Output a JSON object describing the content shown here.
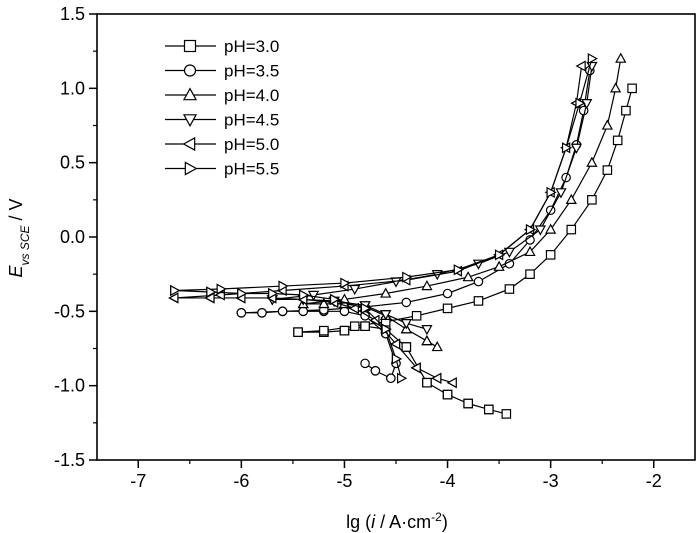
{
  "chart_data": {
    "type": "scatter",
    "xlabel": "lg (i / A·cm⁻²)",
    "xlabel_parts": {
      "pre": "lg (",
      "var": "i",
      "mid": " / A·cm",
      "sup": "-2",
      "post": ")"
    },
    "ylabel_parts": {
      "var": "E",
      "sub": "vs SCE",
      "post": " / V"
    },
    "xlim": [
      -7.4,
      -1.6
    ],
    "ylim": [
      -1.5,
      1.5
    ],
    "xticks": [
      -7,
      -6,
      -5,
      -4,
      -3,
      -2
    ],
    "yticks": [
      -1.5,
      -1.0,
      -0.5,
      0.0,
      0.5,
      1.0,
      1.5
    ],
    "xtick_labels": [
      "-7",
      "-6",
      "-5",
      "-4",
      "-3",
      "-2"
    ],
    "ytick_labels": [
      "-1.5",
      "-1.0",
      "-0.5",
      "0.0",
      "0.5",
      "1.0",
      "1.5"
    ],
    "legend_position": "top-left",
    "series": [
      {
        "name": "pH=3.0",
        "marker": "square",
        "x": [
          -5.45,
          -5.2,
          -5.0,
          -4.8,
          -4.6,
          -4.4,
          -4.2,
          -4.0,
          -3.8,
          -3.6,
          -3.43,
          -3.6,
          -3.8,
          -4.0,
          -4.2,
          -4.4,
          -4.6,
          -4.8,
          -5.0,
          -5.2,
          -5.45,
          -5.2,
          -4.9,
          -4.6,
          -4.3,
          -4.0,
          -3.7,
          -3.4,
          -3.2,
          -3.0,
          -2.8,
          -2.6,
          -2.45,
          -2.35,
          -2.27,
          -2.21
        ],
        "y": [
          -0.64,
          -0.64,
          -0.63,
          -0.6,
          -0.62,
          -0.74,
          -0.98,
          -1.06,
          -1.12,
          -1.16,
          -1.19,
          -1.16,
          -1.12,
          -1.06,
          -0.98,
          -0.74,
          -0.62,
          -0.6,
          -0.63,
          -0.64,
          -0.64,
          -0.63,
          -0.6,
          -0.57,
          -0.53,
          -0.48,
          -0.43,
          -0.35,
          -0.25,
          -0.12,
          0.05,
          0.25,
          0.45,
          0.65,
          0.85,
          1.0
        ]
      },
      {
        "name": "pH=3.5",
        "marker": "circle",
        "x": [
          -6.0,
          -5.8,
          -5.6,
          -5.4,
          -5.2,
          -5.0,
          -4.8,
          -4.6,
          -4.5,
          -4.55,
          -4.7,
          -4.8,
          -4.7,
          -4.55,
          -4.5,
          -4.6,
          -4.8,
          -5.0,
          -5.2,
          -5.4,
          -5.6,
          -5.8,
          -6.0,
          -5.6,
          -5.2,
          -4.8,
          -4.4,
          -4.0,
          -3.7,
          -3.4,
          -3.2,
          -3.0,
          -2.85,
          -2.75,
          -2.68,
          -2.62
        ],
        "y": [
          -0.51,
          -0.51,
          -0.5,
          -0.5,
          -0.5,
          -0.5,
          -0.53,
          -0.65,
          -0.85,
          -0.95,
          -0.9,
          -0.85,
          -0.9,
          -0.95,
          -0.85,
          -0.65,
          -0.53,
          -0.5,
          -0.5,
          -0.5,
          -0.5,
          -0.51,
          -0.51,
          -0.5,
          -0.49,
          -0.47,
          -0.44,
          -0.38,
          -0.3,
          -0.18,
          -0.02,
          0.18,
          0.4,
          0.62,
          0.85,
          1.12
        ]
      },
      {
        "name": "pH=4.0",
        "marker": "triangle-up",
        "x": [
          -5.4,
          -5.2,
          -5.0,
          -4.8,
          -4.6,
          -4.4,
          -4.2,
          -4.1,
          -4.2,
          -4.4,
          -4.6,
          -4.8,
          -5.0,
          -5.2,
          -5.4,
          -5.0,
          -4.6,
          -4.2,
          -3.8,
          -3.5,
          -3.2,
          -3.0,
          -2.8,
          -2.6,
          -2.45,
          -2.37,
          -2.32
        ],
        "y": [
          -0.45,
          -0.45,
          -0.45,
          -0.47,
          -0.53,
          -0.62,
          -0.7,
          -0.74,
          -0.7,
          -0.62,
          -0.53,
          -0.47,
          -0.45,
          -0.45,
          -0.45,
          -0.42,
          -0.38,
          -0.33,
          -0.27,
          -0.2,
          -0.1,
          0.05,
          0.25,
          0.5,
          0.75,
          1.0,
          1.2
        ]
      },
      {
        "name": "pH=4.5",
        "marker": "triangle-down",
        "x": [
          -5.7,
          -5.4,
          -5.1,
          -4.8,
          -4.6,
          -4.4,
          -4.2,
          -4.4,
          -4.6,
          -4.8,
          -5.1,
          -5.4,
          -5.7,
          -5.3,
          -4.9,
          -4.5,
          -4.1,
          -3.7,
          -3.4,
          -3.1,
          -2.9,
          -2.75,
          -2.65,
          -2.6
        ],
        "y": [
          -0.42,
          -0.42,
          -0.43,
          -0.46,
          -0.52,
          -0.58,
          -0.62,
          -0.58,
          -0.52,
          -0.46,
          -0.43,
          -0.42,
          -0.42,
          -0.39,
          -0.35,
          -0.3,
          -0.25,
          -0.18,
          -0.1,
          0.05,
          0.3,
          0.6,
          0.9,
          1.15
        ]
      },
      {
        "name": "pH=5.0",
        "marker": "triangle-left",
        "x": [
          -6.65,
          -6.3,
          -6.0,
          -5.7,
          -5.4,
          -5.1,
          -4.9,
          -4.7,
          -4.5,
          -4.3,
          -4.1,
          -3.95,
          -4.1,
          -4.3,
          -4.5,
          -4.7,
          -4.9,
          -5.1,
          -5.4,
          -5.7,
          -6.0,
          -6.3,
          -6.65,
          -6.2,
          -5.6,
          -5.0,
          -4.4,
          -3.9,
          -3.5,
          -3.2,
          -3.0,
          -2.85,
          -2.75,
          -2.7
        ],
        "y": [
          -0.41,
          -0.41,
          -0.41,
          -0.41,
          -0.42,
          -0.44,
          -0.48,
          -0.56,
          -0.72,
          -0.88,
          -0.95,
          -0.98,
          -0.95,
          -0.88,
          -0.72,
          -0.56,
          -0.48,
          -0.44,
          -0.42,
          -0.41,
          -0.41,
          -0.41,
          -0.41,
          -0.39,
          -0.36,
          -0.33,
          -0.29,
          -0.23,
          -0.12,
          0.05,
          0.3,
          0.6,
          0.9,
          1.15
        ]
      },
      {
        "name": "pH=5.5",
        "marker": "triangle-right",
        "x": [
          -6.65,
          -6.3,
          -6.0,
          -5.7,
          -5.4,
          -5.1,
          -4.8,
          -4.6,
          -4.5,
          -4.45,
          -4.5,
          -4.6,
          -4.8,
          -5.1,
          -5.4,
          -5.7,
          -6.0,
          -6.3,
          -6.65,
          -6.2,
          -5.6,
          -5.0,
          -4.4,
          -3.9,
          -3.5,
          -3.2,
          -3.0,
          -2.85,
          -2.72,
          -2.6
        ],
        "y": [
          -0.36,
          -0.37,
          -0.38,
          -0.38,
          -0.39,
          -0.42,
          -0.48,
          -0.62,
          -0.82,
          -0.95,
          -0.82,
          -0.62,
          -0.48,
          -0.42,
          -0.39,
          -0.38,
          -0.38,
          -0.37,
          -0.36,
          -0.35,
          -0.33,
          -0.31,
          -0.27,
          -0.22,
          -0.12,
          0.05,
          0.3,
          0.6,
          0.9,
          1.2
        ]
      }
    ]
  }
}
